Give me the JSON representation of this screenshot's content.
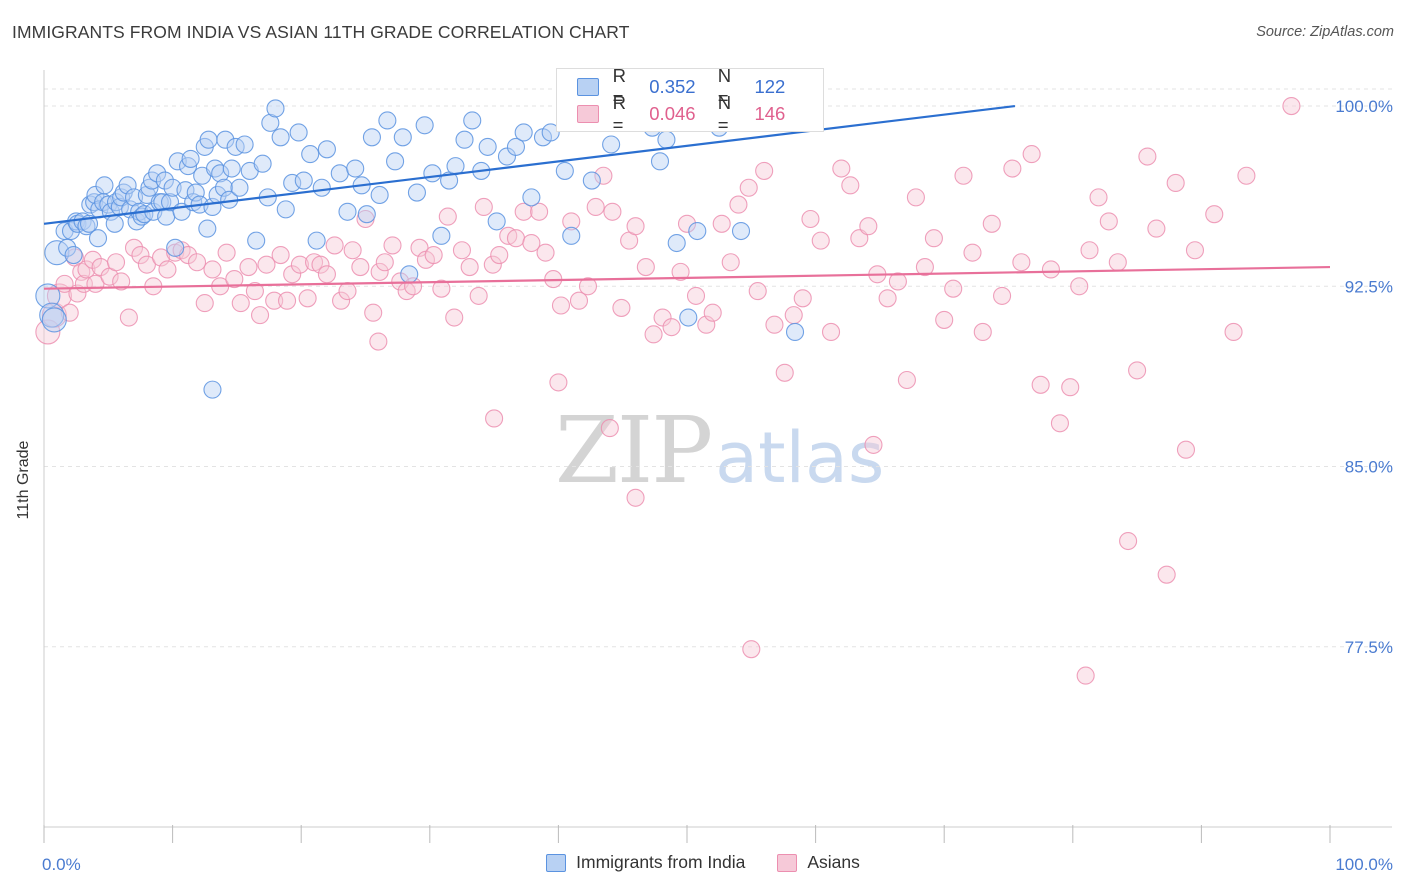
{
  "title": "IMMIGRANTS FROM INDIA VS ASIAN 11TH GRADE CORRELATION CHART",
  "source": "Source: ZipAtlas.com",
  "watermark": {
    "zip": "ZIP",
    "atlas": "atlas"
  },
  "colors": {
    "blue": "#5b93e0",
    "blue_fill": "#b8d1f3",
    "blue_line": "#2b6fd0",
    "pink": "#ec8fb0",
    "pink_fill": "#f6c9d8",
    "pink_line": "#e8709a",
    "axis_text": "#4a7bd0",
    "grid": "#e3e3e3"
  },
  "legend_top": {
    "blue": {
      "r_label": "R =",
      "r_value": "0.352",
      "n_label": "N =",
      "n_value": "122"
    },
    "pink": {
      "r_label": "R =",
      "r_value": "0.046",
      "n_label": "N =",
      "n_value": "146"
    }
  },
  "legend_bottom": [
    "Immigrants from India",
    "Asians"
  ],
  "chart_data": {
    "type": "scatter",
    "title": "IMMIGRANTS FROM INDIA VS ASIAN 11TH GRADE CORRELATION CHART",
    "xlabel": "",
    "ylabel": "11th Grade",
    "xlim": [
      0,
      100
    ],
    "ylim": [
      70.0,
      101.5
    ],
    "x_tick_labels": [
      "0.0%",
      "100.0%"
    ],
    "y_ticks": [
      77.5,
      85.0,
      92.5,
      100.0
    ],
    "y_tick_labels": [
      "77.5%",
      "85.0%",
      "92.5%",
      "100.0%"
    ],
    "grid": true,
    "legend_position": "top-center",
    "series": [
      {
        "name": "Immigrants from India",
        "color": "#5b93e0",
        "trend": {
          "x": [
            0,
            75.5
          ],
          "y": [
            95.1,
            100.0
          ]
        },
        "points": [
          [
            0.3,
            92.1
          ],
          [
            0.6,
            91.3
          ],
          [
            0.8,
            91.1
          ],
          [
            1.0,
            93.9
          ],
          [
            1.6,
            94.8
          ],
          [
            1.8,
            94.1
          ],
          [
            2.1,
            94.8
          ],
          [
            2.3,
            93.8
          ],
          [
            2.5,
            95.2
          ],
          [
            2.6,
            95.1
          ],
          [
            3.0,
            95.2
          ],
          [
            3.3,
            95.0
          ],
          [
            3.5,
            95.1
          ],
          [
            3.6,
            95.9
          ],
          [
            3.9,
            96.0
          ],
          [
            4.0,
            96.3
          ],
          [
            4.2,
            94.5
          ],
          [
            4.3,
            95.7
          ],
          [
            4.6,
            96.0
          ],
          [
            4.7,
            96.7
          ],
          [
            5.0,
            95.9
          ],
          [
            5.2,
            95.6
          ],
          [
            5.5,
            95.1
          ],
          [
            5.6,
            96.0
          ],
          [
            5.9,
            95.8
          ],
          [
            6.0,
            96.2
          ],
          [
            6.2,
            96.4
          ],
          [
            6.5,
            96.7
          ],
          [
            6.7,
            95.7
          ],
          [
            7.0,
            96.2
          ],
          [
            7.2,
            95.2
          ],
          [
            7.4,
            95.6
          ],
          [
            7.6,
            95.4
          ],
          [
            7.8,
            95.5
          ],
          [
            8.0,
            96.3
          ],
          [
            8.2,
            96.6
          ],
          [
            8.4,
            96.9
          ],
          [
            8.5,
            95.6
          ],
          [
            8.8,
            97.2
          ],
          [
            9.0,
            96.0
          ],
          [
            9.2,
            96.0
          ],
          [
            9.4,
            96.9
          ],
          [
            9.5,
            95.4
          ],
          [
            9.8,
            96.0
          ],
          [
            10.0,
            96.6
          ],
          [
            10.2,
            94.1
          ],
          [
            10.4,
            97.7
          ],
          [
            10.7,
            95.6
          ],
          [
            11.0,
            96.5
          ],
          [
            11.2,
            97.5
          ],
          [
            11.4,
            97.8
          ],
          [
            11.6,
            96.0
          ],
          [
            11.8,
            96.4
          ],
          [
            12.1,
            95.9
          ],
          [
            12.3,
            97.1
          ],
          [
            12.5,
            98.3
          ],
          [
            12.7,
            94.9
          ],
          [
            12.8,
            98.6
          ],
          [
            13.1,
            95.8
          ],
          [
            13.3,
            97.4
          ],
          [
            13.5,
            96.3
          ],
          [
            13.7,
            97.2
          ],
          [
            14.0,
            96.6
          ],
          [
            14.1,
            98.6
          ],
          [
            14.4,
            96.1
          ],
          [
            14.6,
            97.4
          ],
          [
            14.9,
            98.3
          ],
          [
            15.2,
            96.6
          ],
          [
            15.6,
            98.4
          ],
          [
            16.0,
            97.3
          ],
          [
            16.5,
            94.4
          ],
          [
            17.0,
            97.6
          ],
          [
            17.4,
            96.2
          ],
          [
            17.6,
            99.3
          ],
          [
            18.0,
            99.9
          ],
          [
            18.4,
            98.7
          ],
          [
            18.8,
            95.7
          ],
          [
            19.3,
            96.8
          ],
          [
            19.8,
            98.9
          ],
          [
            20.2,
            96.9
          ],
          [
            20.7,
            98.0
          ],
          [
            21.2,
            94.4
          ],
          [
            21.6,
            96.6
          ],
          [
            22.0,
            98.2
          ],
          [
            23.0,
            97.2
          ],
          [
            23.6,
            95.6
          ],
          [
            24.2,
            97.4
          ],
          [
            24.7,
            96.7
          ],
          [
            25.1,
            95.5
          ],
          [
            25.5,
            98.7
          ],
          [
            26.1,
            96.3
          ],
          [
            26.7,
            99.4
          ],
          [
            27.3,
            97.7
          ],
          [
            27.9,
            98.7
          ],
          [
            28.4,
            93.0
          ],
          [
            29.0,
            96.4
          ],
          [
            29.6,
            99.2
          ],
          [
            30.2,
            97.2
          ],
          [
            30.9,
            94.6
          ],
          [
            31.5,
            96.9
          ],
          [
            32.0,
            97.5
          ],
          [
            32.7,
            98.6
          ],
          [
            33.3,
            99.4
          ],
          [
            34.0,
            97.3
          ],
          [
            34.5,
            98.3
          ],
          [
            35.2,
            95.2
          ],
          [
            36.0,
            97.9
          ],
          [
            36.7,
            98.3
          ],
          [
            37.3,
            98.9
          ],
          [
            37.9,
            96.2
          ],
          [
            38.8,
            98.7
          ],
          [
            39.4,
            98.9
          ],
          [
            40.5,
            97.3
          ],
          [
            41.0,
            94.6
          ],
          [
            42.0,
            100.0
          ],
          [
            42.6,
            96.9
          ],
          [
            44.1,
            98.4
          ],
          [
            45.6,
            99.3
          ],
          [
            47.3,
            99.1
          ],
          [
            47.9,
            97.7
          ],
          [
            48.4,
            98.6
          ],
          [
            49.2,
            94.3
          ],
          [
            50.1,
            91.2
          ],
          [
            50.8,
            94.8
          ],
          [
            52.5,
            99.1
          ],
          [
            54.2,
            94.8
          ],
          [
            58.4,
            90.6
          ],
          [
            13.1,
            88.2
          ]
        ]
      },
      {
        "name": "Asians",
        "color": "#ec8fb0",
        "trend": {
          "x": [
            0,
            100
          ],
          "y": [
            92.4,
            93.3
          ]
        },
        "points": [
          [
            0.3,
            90.6
          ],
          [
            0.8,
            91.3
          ],
          [
            1.2,
            92.1
          ],
          [
            1.6,
            92.6
          ],
          [
            2.0,
            91.4
          ],
          [
            2.4,
            93.7
          ],
          [
            2.6,
            92.2
          ],
          [
            2.9,
            93.1
          ],
          [
            3.1,
            92.6
          ],
          [
            3.3,
            93.2
          ],
          [
            3.8,
            93.6
          ],
          [
            4.0,
            92.6
          ],
          [
            4.4,
            93.3
          ],
          [
            5.1,
            92.9
          ],
          [
            5.6,
            93.5
          ],
          [
            6.0,
            92.7
          ],
          [
            6.6,
            91.2
          ],
          [
            7.0,
            94.1
          ],
          [
            7.5,
            93.8
          ],
          [
            8.0,
            93.4
          ],
          [
            8.5,
            92.5
          ],
          [
            9.1,
            93.7
          ],
          [
            9.6,
            93.2
          ],
          [
            10.2,
            93.9
          ],
          [
            10.7,
            94.0
          ],
          [
            11.2,
            93.8
          ],
          [
            11.9,
            93.5
          ],
          [
            12.5,
            91.8
          ],
          [
            13.1,
            93.2
          ],
          [
            13.7,
            92.5
          ],
          [
            14.2,
            93.9
          ],
          [
            14.8,
            92.8
          ],
          [
            15.3,
            91.8
          ],
          [
            15.9,
            93.3
          ],
          [
            16.4,
            92.3
          ],
          [
            16.8,
            91.3
          ],
          [
            17.3,
            93.4
          ],
          [
            17.9,
            91.9
          ],
          [
            18.4,
            93.8
          ],
          [
            18.9,
            91.9
          ],
          [
            19.3,
            93.0
          ],
          [
            19.9,
            93.4
          ],
          [
            20.5,
            92.0
          ],
          [
            21.0,
            93.5
          ],
          [
            21.5,
            93.4
          ],
          [
            22.0,
            93.0
          ],
          [
            22.6,
            94.2
          ],
          [
            23.1,
            91.9
          ],
          [
            23.6,
            92.3
          ],
          [
            24.0,
            94.0
          ],
          [
            24.6,
            93.3
          ],
          [
            25.0,
            95.3
          ],
          [
            25.6,
            91.4
          ],
          [
            26.1,
            93.1
          ],
          [
            26.5,
            93.5
          ],
          [
            27.1,
            94.2
          ],
          [
            27.7,
            92.7
          ],
          [
            28.2,
            92.3
          ],
          [
            28.7,
            92.5
          ],
          [
            29.2,
            94.1
          ],
          [
            29.7,
            93.6
          ],
          [
            30.3,
            93.8
          ],
          [
            30.9,
            92.4
          ],
          [
            31.4,
            95.4
          ],
          [
            31.9,
            91.2
          ],
          [
            32.5,
            94.0
          ],
          [
            33.1,
            93.3
          ],
          [
            33.8,
            92.1
          ],
          [
            34.2,
            95.8
          ],
          [
            34.9,
            93.4
          ],
          [
            35.4,
            93.8
          ],
          [
            36.1,
            94.6
          ],
          [
            36.7,
            94.5
          ],
          [
            37.3,
            95.6
          ],
          [
            37.9,
            94.3
          ],
          [
            38.5,
            95.6
          ],
          [
            39.0,
            93.9
          ],
          [
            39.6,
            92.8
          ],
          [
            40.2,
            91.7
          ],
          [
            41.0,
            95.2
          ],
          [
            41.6,
            91.9
          ],
          [
            42.3,
            92.5
          ],
          [
            42.9,
            95.8
          ],
          [
            43.5,
            97.1
          ],
          [
            44.2,
            95.6
          ],
          [
            44.9,
            91.6
          ],
          [
            45.5,
            94.4
          ],
          [
            46.0,
            95.0
          ],
          [
            46.8,
            93.3
          ],
          [
            47.4,
            90.5
          ],
          [
            48.1,
            91.2
          ],
          [
            48.8,
            90.8
          ],
          [
            49.5,
            93.1
          ],
          [
            50.0,
            95.1
          ],
          [
            50.7,
            92.1
          ],
          [
            51.5,
            90.9
          ],
          [
            52.0,
            91.4
          ],
          [
            52.7,
            95.1
          ],
          [
            53.4,
            93.5
          ],
          [
            54.0,
            95.9
          ],
          [
            54.8,
            96.6
          ],
          [
            55.5,
            92.3
          ],
          [
            56.0,
            97.3
          ],
          [
            56.8,
            90.9
          ],
          [
            57.6,
            88.9
          ],
          [
            58.3,
            91.3
          ],
          [
            59.0,
            92.0
          ],
          [
            59.6,
            95.3
          ],
          [
            60.4,
            94.4
          ],
          [
            61.2,
            90.6
          ],
          [
            62.0,
            97.4
          ],
          [
            62.7,
            96.7
          ],
          [
            63.4,
            94.5
          ],
          [
            64.1,
            95.0
          ],
          [
            64.8,
            93.0
          ],
          [
            65.6,
            92.0
          ],
          [
            66.4,
            92.7
          ],
          [
            67.1,
            88.6
          ],
          [
            67.8,
            96.2
          ],
          [
            68.5,
            93.3
          ],
          [
            69.2,
            94.5
          ],
          [
            70.0,
            91.1
          ],
          [
            70.7,
            92.4
          ],
          [
            71.5,
            97.1
          ],
          [
            72.2,
            93.9
          ],
          [
            73.0,
            90.6
          ],
          [
            73.7,
            95.1
          ],
          [
            74.5,
            92.1
          ],
          [
            75.3,
            97.4
          ],
          [
            76.0,
            93.5
          ],
          [
            76.8,
            98.0
          ],
          [
            77.5,
            88.4
          ],
          [
            78.3,
            93.2
          ],
          [
            79.0,
            86.8
          ],
          [
            79.8,
            88.3
          ],
          [
            80.5,
            92.5
          ],
          [
            81.3,
            94.0
          ],
          [
            82.0,
            96.2
          ],
          [
            82.8,
            95.2
          ],
          [
            83.5,
            93.5
          ],
          [
            84.3,
            81.9
          ],
          [
            85.0,
            89.0
          ],
          [
            85.8,
            97.9
          ],
          [
            86.5,
            94.9
          ],
          [
            87.3,
            80.5
          ],
          [
            88.0,
            96.8
          ],
          [
            88.8,
            85.7
          ],
          [
            89.5,
            94.0
          ],
          [
            91.0,
            95.5
          ],
          [
            92.5,
            90.6
          ],
          [
            93.5,
            97.1
          ],
          [
            97.0,
            100.0
          ],
          [
            40.0,
            88.5
          ],
          [
            55.0,
            77.4
          ],
          [
            64.5,
            85.9
          ],
          [
            81.0,
            76.3
          ],
          [
            35.0,
            87.0
          ],
          [
            44.0,
            86.6
          ],
          [
            46.0,
            83.7
          ],
          [
            26.0,
            90.2
          ]
        ]
      }
    ]
  }
}
